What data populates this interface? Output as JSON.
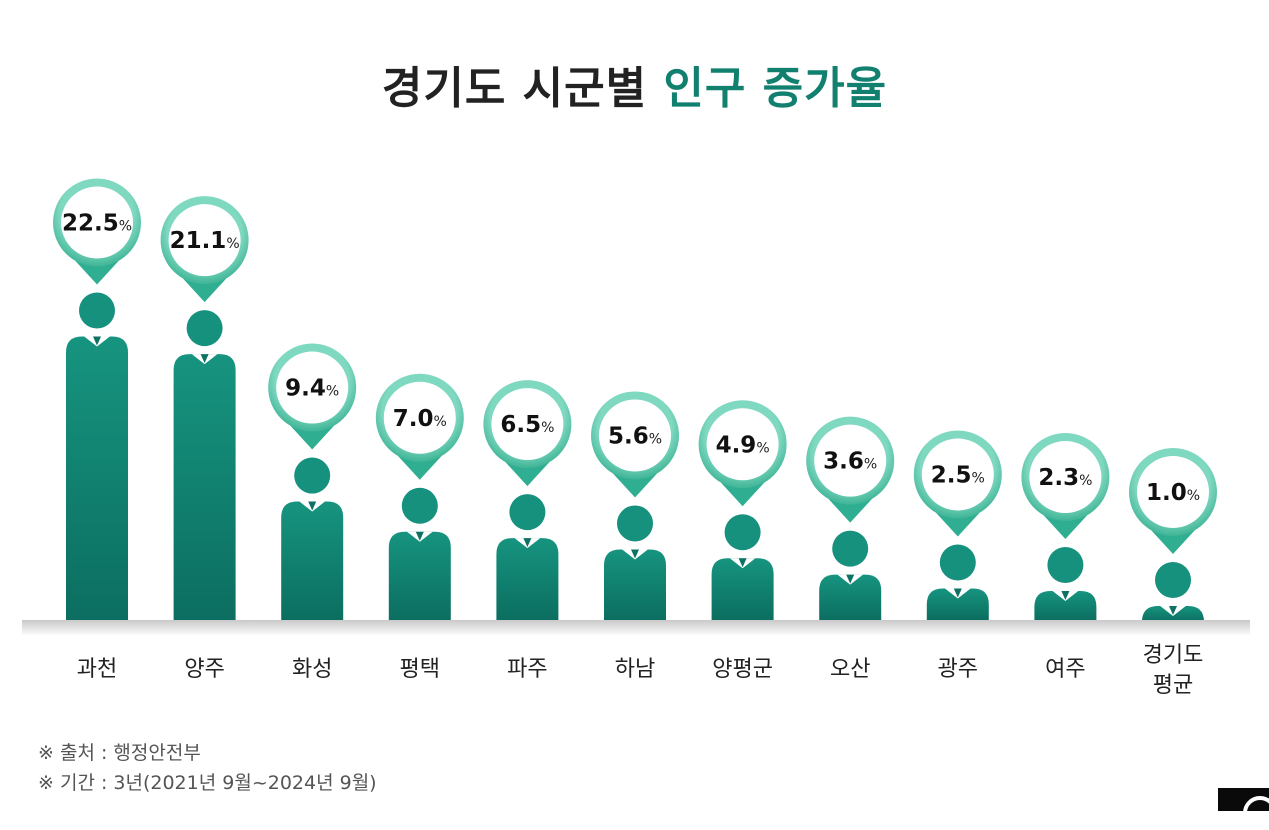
{
  "title": {
    "main": "경기도 시군별 ",
    "accent": "인구 증가율"
  },
  "chart_data": {
    "type": "bar",
    "categories": [
      "과천",
      "양주",
      "화성",
      "평택",
      "파주",
      "하남",
      "양평군",
      "오산",
      "광주",
      "여주",
      "경기도\n평균"
    ],
    "values": [
      22.5,
      21.1,
      9.4,
      7.0,
      6.5,
      5.6,
      4.9,
      3.6,
      2.5,
      2.3,
      1.0
    ],
    "labels": [
      "22.5",
      "21.1",
      "9.4",
      "7.0",
      "6.5",
      "5.6",
      "4.9",
      "3.6",
      "2.5",
      "2.3",
      "1.0"
    ],
    "unit": "%"
  },
  "notes": {
    "source": "※ 출처 : 행정안전부",
    "period": "※ 기간 : 3년(2021년 9월~2024년 9월)"
  },
  "colors": {
    "accent": "#12806f",
    "bar_dark": "#0c6e60",
    "bar": "#129080",
    "pin_ring": "#4cc2a6",
    "title": "#222222"
  }
}
